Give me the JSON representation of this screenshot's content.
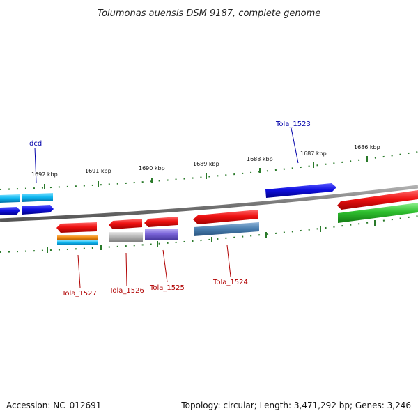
{
  "title": "Tolumonas auensis DSM 9187, complete genome",
  "footer": {
    "accession": "Accession: NC_012691",
    "summary": "Topology: circular; Length: 3,471,292 bp; Genes: 3,246"
  },
  "ruler_labels": [
    "1692 kbp",
    "1691 kbp",
    "1690 kbp",
    "1689 kbp",
    "1688 kbp",
    "1687 kbp",
    "1686 kbp"
  ],
  "gene_labels": {
    "dcd": "dcd",
    "tola_1523": "Tola_1523",
    "tola_1524": "Tola_1524",
    "tola_1525": "Tola_1525",
    "tola_1526": "Tola_1526",
    "tola_1527": "Tola_1527"
  },
  "colors": {
    "backbone": "#777777",
    "tick": "#2a7a2a",
    "red": "#ee1111",
    "blue": "#1010e0",
    "cyan": "#10b8f0",
    "green": "#2fc02f",
    "steel": "#4a7fb0",
    "purple": "#7a64d8",
    "gray": "#b8b8b8",
    "orange": "#f08a10",
    "red_label": "#b00000",
    "blue_label": "#0000aa"
  }
}
